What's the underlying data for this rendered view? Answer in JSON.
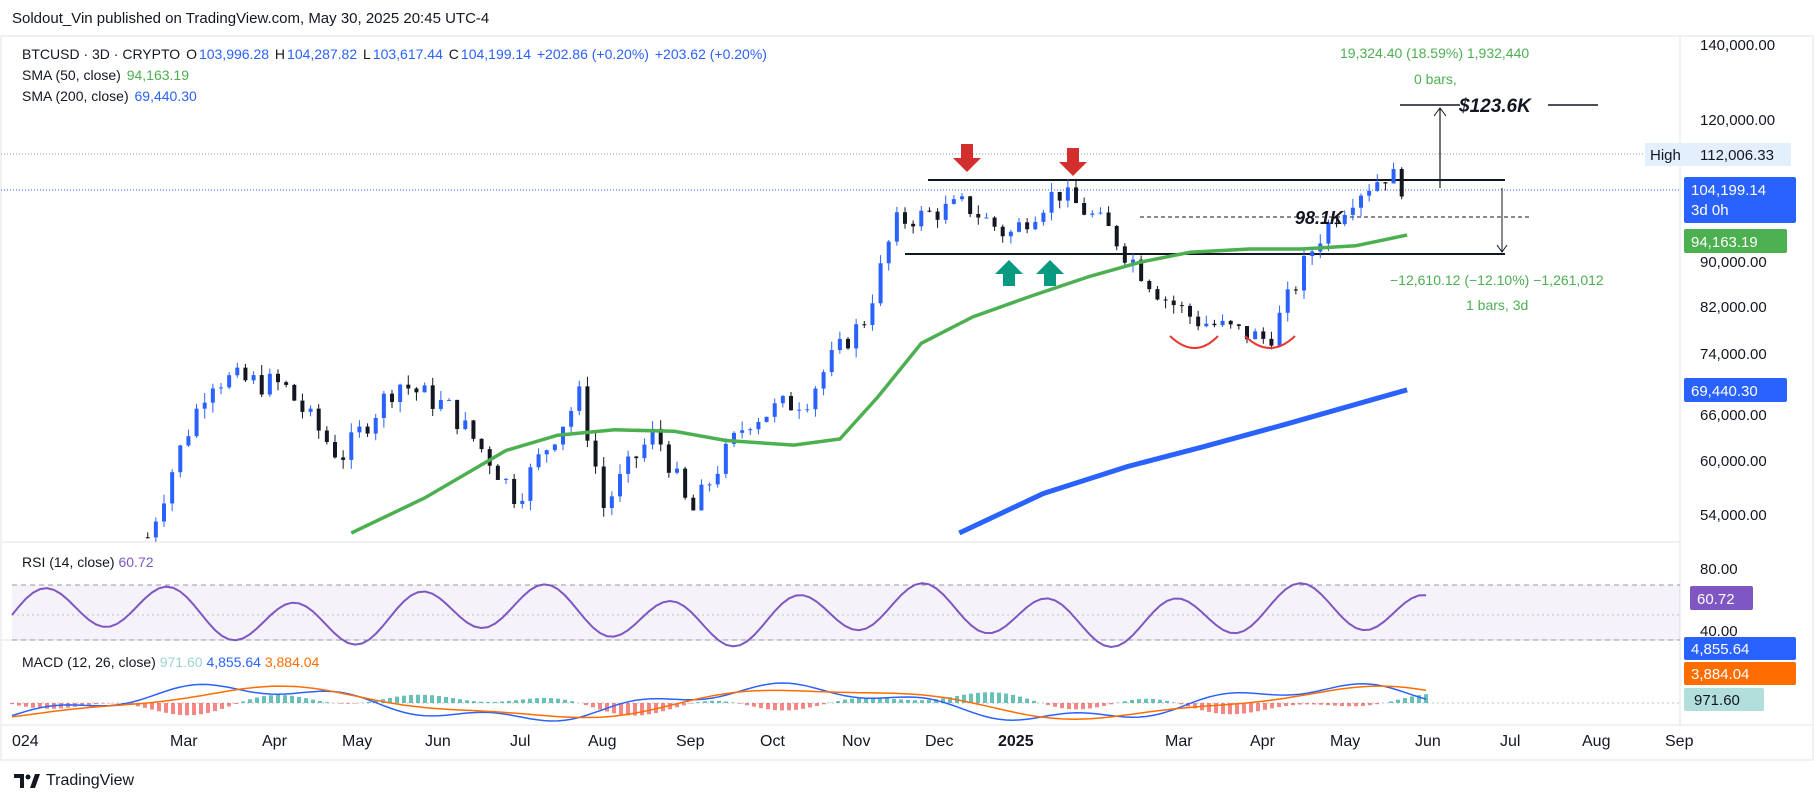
{
  "header": {
    "published": "Soldout_Vin published on TradingView.com, May 30, 2025 20:45 UTC-4"
  },
  "legend": {
    "symbol": "BTCUSD · 3D · CRYPTO",
    "o_label": "O",
    "o": "103,996.28",
    "h_label": "H",
    "h": "104,287.82",
    "l_label": "L",
    "l": "103,617.44",
    "c_label": "C",
    "c": "104,199.14",
    "chg": "+202.86 (+0.20%)",
    "chg2": "+203.62 (+0.20%)",
    "sma50_label": "SMA (50, close)",
    "sma50": "94,163.19",
    "sma200_label": "SMA (200, close)",
    "sma200": "69,440.30"
  },
  "rsi": {
    "label": "RSI (14, close)",
    "value": "60.72"
  },
  "macd": {
    "label": "MACD (12, 26, close)",
    "hist": "971.60",
    "macd": "4,855.64",
    "signal": "3,884.04"
  },
  "annotations": {
    "measure_up_1": "19,324.40 (18.59%) 1,932,440",
    "measure_up_2": "0 bars,",
    "target": "$123.6K",
    "level": "98.1K",
    "measure_down_1": "−12,610.12 (−12.10%) −1,261,012",
    "measure_down_2": "1 bars, 3d"
  },
  "price_axis": {
    "ticks": [
      "140,000.00",
      "120,000.00",
      "112,006.33",
      "104,199.14",
      "94,163.19",
      "90,000.00",
      "82,000.00",
      "74,000.00",
      "69,440.30",
      "66,000.00",
      "60,000.00",
      "54,000.00"
    ],
    "high_label": "High",
    "countdown": "3d 0h"
  },
  "rsi_axis": {
    "ticks": [
      "80.00",
      "60.72",
      "40.00"
    ]
  },
  "macd_axis": {
    "ticks": [
      "4,855.64",
      "3,884.04",
      "971.60"
    ]
  },
  "time_axis": {
    "labels": [
      "024",
      "Mar",
      "Apr",
      "May",
      "Jun",
      "Jul",
      "Aug",
      "Sep",
      "Oct",
      "Nov",
      "Dec",
      "2025",
      "Mar",
      "Apr",
      "May",
      "Jun",
      "Jul",
      "Aug",
      "Sep"
    ]
  },
  "brand": {
    "name": "TradingView"
  },
  "colors": {
    "up": "#2962ff",
    "down": "#131722",
    "sma50": "#4caf50",
    "sma200": "#2962ff",
    "rsi": "#7e57c2",
    "signal": "#ff6d00",
    "arrow_down": "#d32f2f",
    "arrow_up": "#089981"
  },
  "chart_data": {
    "type": "line",
    "title": "BTCUSD · 3D · CRYPTO",
    "xlabel": "",
    "ylabel": "",
    "ylim": [
      50000,
      140000
    ],
    "series": [
      {
        "name": "SMA (50, close)",
        "x": [
          "2024-05-05",
          "2024-06-01",
          "2024-07-01",
          "2024-07-20",
          "2024-08-10",
          "2024-09-01",
          "2024-09-20",
          "2024-10-15",
          "2024-11-01",
          "2024-11-15",
          "2024-12-01",
          "2024-12-20",
          "2025-01-10",
          "2025-02-01",
          "2025-02-20",
          "2025-03-10",
          "2025-04-01",
          "2025-04-20",
          "2025-05-10",
          "2025-05-29"
        ],
        "values": [
          52000,
          56000,
          61500,
          63500,
          64200,
          64000,
          62800,
          62200,
          63000,
          68500,
          76000,
          80500,
          84000,
          87500,
          90000,
          91500,
          92000,
          92000,
          92500,
          94163
        ]
      },
      {
        "name": "SMA (200, close)",
        "x": [
          "2024-12-15",
          "2025-01-15",
          "2025-02-15",
          "2025-03-15",
          "2025-04-15",
          "2025-05-29"
        ],
        "values": [
          52000,
          56500,
          59500,
          62000,
          65000,
          69440
        ]
      },
      {
        "name": "BTCUSD close",
        "x": [
          "2024-02-20",
          "2024-03-14",
          "2024-04-10",
          "2024-05-01",
          "2024-05-22",
          "2024-06-10",
          "2024-07-05",
          "2024-07-28",
          "2024-08-06",
          "2024-08-25",
          "2024-09-07",
          "2024-09-28",
          "2024-10-20",
          "2024-11-10",
          "2024-11-22",
          "2024-12-05",
          "2024-12-17",
          "2025-01-02",
          "2025-01-20",
          "2025-02-05",
          "2025-02-28",
          "2025-03-12",
          "2025-04-08",
          "2025-04-25",
          "2025-05-10",
          "2025-05-22",
          "2025-05-29"
        ],
        "values": [
          51500,
          71000,
          70000,
          60500,
          70500,
          67000,
          56000,
          68500,
          55000,
          64000,
          54000,
          65500,
          68500,
          80000,
          97000,
          99000,
          101000,
          94000,
          104000,
          97000,
          84000,
          80000,
          76500,
          93000,
          103500,
          108000,
          104199
        ]
      }
    ]
  }
}
